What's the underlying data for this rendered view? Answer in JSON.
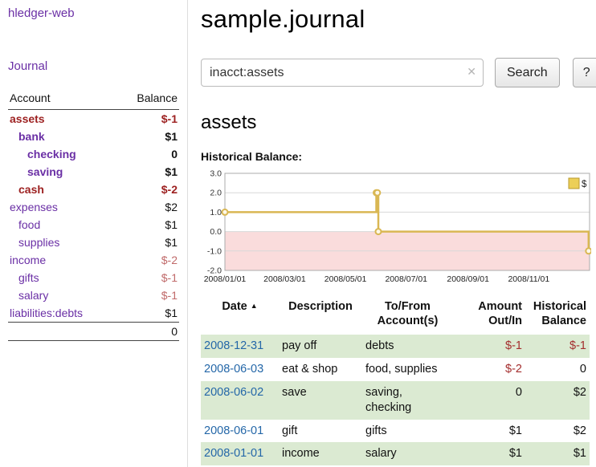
{
  "colors": {
    "purple": "#6a2fa5",
    "negative_bold": "#9d2121",
    "negative_light": "#c06a6a",
    "negative_table": "#a42e2e",
    "date_link": "#2467a8",
    "row_green": "#dbead2",
    "chart_line": "#d9b753",
    "chart_negative_bg": "#fadcdc",
    "legend_fill": "#eccf58",
    "legend_border": "#b89a2e"
  },
  "sidebar": {
    "brand": "hledger-web",
    "journal_link": "Journal",
    "accounts_header": {
      "account": "Account",
      "balance": "Balance"
    },
    "accounts": [
      {
        "name": "assets",
        "depth": 0,
        "bold": true,
        "name_color": "negative",
        "balance": "$-1",
        "balance_color": "negative"
      },
      {
        "name": "bank",
        "depth": 1,
        "bold": true,
        "name_color": "purple",
        "balance": "$1",
        "balance_color": "normal"
      },
      {
        "name": "checking",
        "depth": 2,
        "bold": true,
        "name_color": "purple",
        "balance": "0",
        "balance_color": "normal"
      },
      {
        "name": "saving",
        "depth": 2,
        "bold": true,
        "name_color": "purple",
        "balance": "$1",
        "balance_color": "normal"
      },
      {
        "name": "cash",
        "depth": 1,
        "bold": true,
        "name_color": "negative",
        "balance": "$-2",
        "balance_color": "negative"
      },
      {
        "name": "expenses",
        "depth": 0,
        "bold": false,
        "name_color": "purple",
        "balance": "$2",
        "balance_color": "normal"
      },
      {
        "name": "food",
        "depth": 1,
        "bold": false,
        "name_color": "purple",
        "balance": "$1",
        "balance_color": "normal"
      },
      {
        "name": "supplies",
        "depth": 1,
        "bold": false,
        "name_color": "purple",
        "balance": "$1",
        "balance_color": "normal"
      },
      {
        "name": "income",
        "depth": 0,
        "bold": false,
        "name_color": "purple",
        "balance": "$-2",
        "balance_color": "negative-light"
      },
      {
        "name": "gifts",
        "depth": 1,
        "bold": false,
        "name_color": "purple",
        "balance": "$-1",
        "balance_color": "negative-light"
      },
      {
        "name": "salary",
        "depth": 1,
        "bold": false,
        "name_color": "purple",
        "balance": "$-1",
        "balance_color": "negative-light"
      },
      {
        "name": "liabilities:debts",
        "depth": 0,
        "bold": false,
        "name_color": "purple",
        "balance": "$1",
        "balance_color": "normal"
      }
    ],
    "total": "0"
  },
  "main": {
    "title": "sample.journal",
    "search": {
      "value": "inacct:assets",
      "clear_icon": "✕",
      "button": "Search",
      "help_button": "?"
    },
    "section_heading": "assets",
    "chart_label": "Historical Balance:"
  },
  "chart_data": {
    "type": "line",
    "style": "step-after",
    "title": "Historical Balance",
    "series": [
      {
        "name": "$",
        "points": [
          [
            "2008-01-01",
            1
          ],
          [
            "2008-06-01",
            2
          ],
          [
            "2008-06-02",
            2
          ],
          [
            "2008-06-03",
            0
          ],
          [
            "2008-12-31",
            -1
          ]
        ]
      }
    ],
    "ylim": [
      -2,
      3
    ],
    "yticks": [
      3.0,
      2.0,
      1.0,
      0.0,
      -1.0,
      -2.0
    ],
    "xdomain": [
      "2008-01-01",
      "2009-01-01"
    ],
    "xticks": [
      "2008/01/01",
      "2008/03/01",
      "2008/05/01",
      "2008/07/01",
      "2008/09/01",
      "2008/11/01"
    ],
    "legend": [
      {
        "label": "$",
        "position": "top-right"
      }
    ],
    "grid": "horizontal",
    "negative_region_shaded": true
  },
  "register": {
    "columns": [
      {
        "id": "date",
        "lines": [
          "Date"
        ],
        "align": "left",
        "sortable": true,
        "sort_icon": "▲"
      },
      {
        "id": "description",
        "lines": [
          "Description"
        ],
        "align": "left",
        "sortable": false
      },
      {
        "id": "accounts",
        "lines": [
          "To/From",
          "Account(s)"
        ],
        "align": "left",
        "sortable": false
      },
      {
        "id": "amount",
        "lines": [
          "Amount",
          "Out/In"
        ],
        "align": "right",
        "sortable": false
      },
      {
        "id": "balance",
        "lines": [
          "Historical",
          "Balance"
        ],
        "align": "right",
        "sortable": false
      }
    ],
    "rows": [
      {
        "date": "2008-12-31",
        "description": "pay off",
        "accounts": "debts",
        "amount": "$-1",
        "amount_negative": true,
        "balance": "$-1",
        "balance_negative": true,
        "highlighted": true
      },
      {
        "date": "2008-06-03",
        "description": "eat & shop",
        "accounts": "food, supplies",
        "amount": "$-2",
        "amount_negative": true,
        "balance": "0",
        "balance_negative": false,
        "highlighted": false
      },
      {
        "date": "2008-06-02",
        "description": "save",
        "accounts": "saving, checking",
        "amount": "0",
        "amount_negative": false,
        "balance": "$2",
        "balance_negative": false,
        "highlighted": true
      },
      {
        "date": "2008-06-01",
        "description": "gift",
        "accounts": "gifts",
        "amount": "$1",
        "amount_negative": false,
        "balance": "$2",
        "balance_negative": false,
        "highlighted": false
      },
      {
        "date": "2008-01-01",
        "description": "income",
        "accounts": "salary",
        "amount": "$1",
        "amount_negative": false,
        "balance": "$1",
        "balance_negative": false,
        "highlighted": true
      }
    ]
  }
}
